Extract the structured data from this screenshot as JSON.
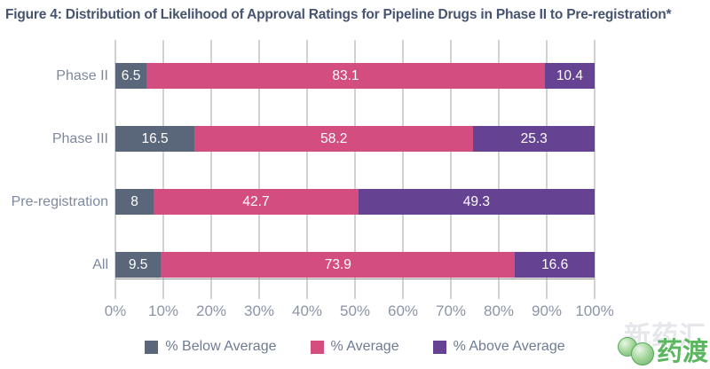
{
  "title": "Figure 4: Distribution of Likelihood of Approval Ratings for Pipeline Drugs in Phase II to Pre-registration*",
  "chart_data": {
    "type": "bar",
    "orientation": "horizontal",
    "stacked": true,
    "title": "Figure 4: Distribution of Likelihood of Approval Ratings for Pipeline Drugs in Phase II to Pre-registration*",
    "categories": [
      "Phase II",
      "Phase III",
      "Pre-registration",
      "All"
    ],
    "series": [
      {
        "name": "% Below Average",
        "color": "#5a6679",
        "values": [
          6.5,
          16.5,
          8,
          9.5
        ],
        "labels": [
          "6.5",
          "16.5",
          "8",
          "9.5"
        ]
      },
      {
        "name": "% Average",
        "color": "#d44d80",
        "values": [
          83.1,
          58.2,
          42.7,
          73.9
        ],
        "labels": [
          "83.1",
          "58.2",
          "42.7",
          "73.9"
        ]
      },
      {
        "name": "% Above Average",
        "color": "#654292",
        "values": [
          10.4,
          25.3,
          49.3,
          16.6
        ],
        "labels": [
          "10.4",
          "25.3",
          "49.3",
          "16.6"
        ]
      }
    ],
    "xlim": [
      0,
      100
    ],
    "xticks": [
      "0%",
      "10%",
      "20%",
      "30%",
      "40%",
      "50%",
      "60%",
      "70%",
      "80%",
      "90%",
      "100%"
    ],
    "grid": true,
    "legend_position": "bottom",
    "bar_label_color": "#ffffff"
  },
  "colors": {
    "title": "#475470",
    "axis_labels": "#8b95a8",
    "category_labels": "#7e899e",
    "legend_text": "#6f7b93",
    "gridline": "#a6a6a6",
    "axis_line": "#8f8f8f",
    "background": "#ffffff"
  },
  "watermark": {
    "brand_text": "药渡",
    "background_text": "新药汇",
    "brand_color": "#5cb660"
  }
}
